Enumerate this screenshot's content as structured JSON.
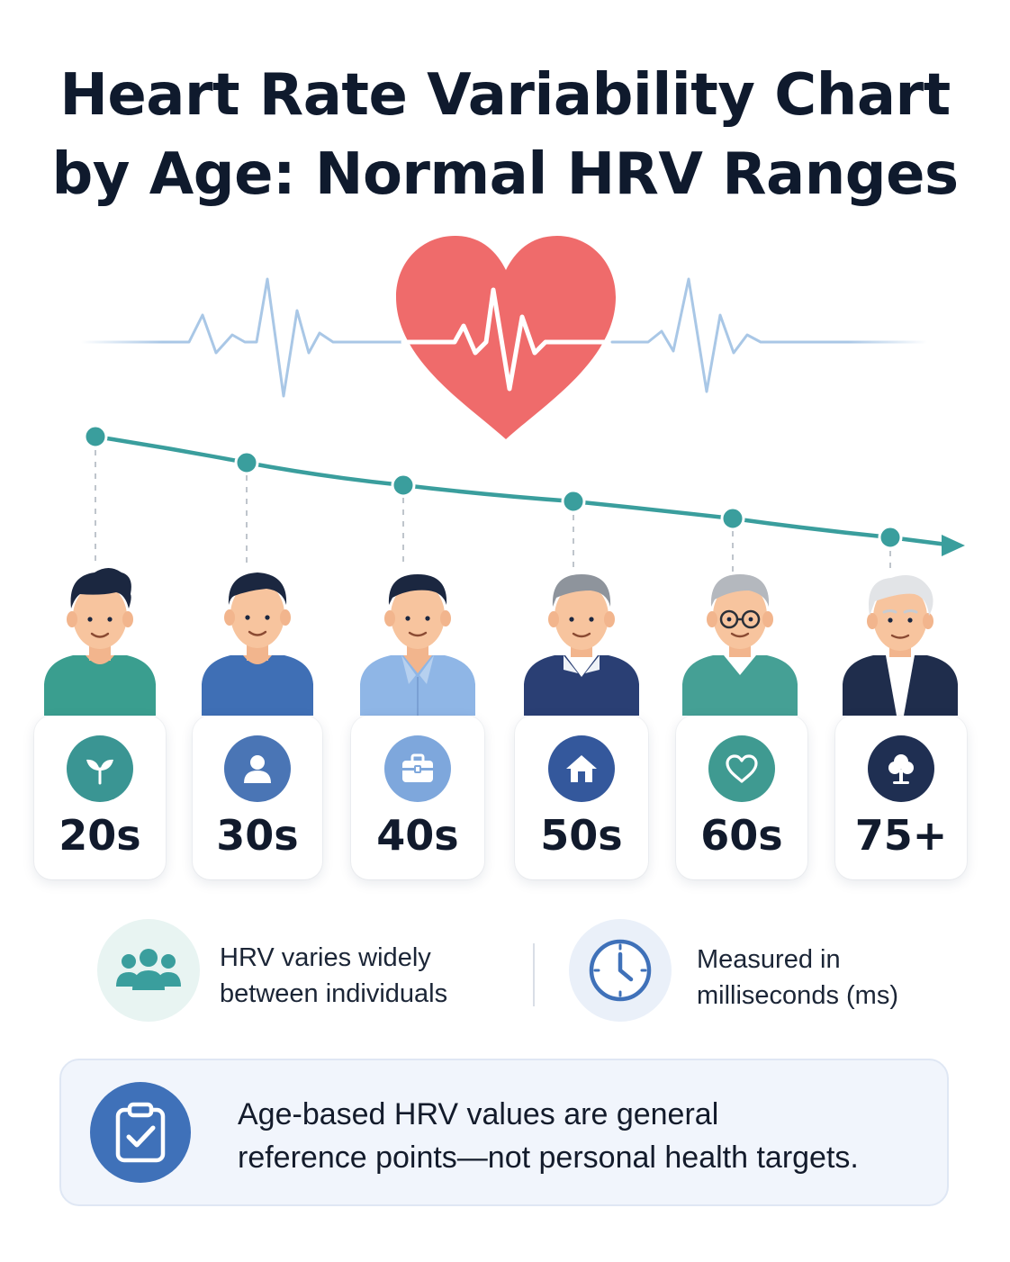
{
  "title": {
    "line1": "Heart Rate Variability Chart",
    "line2": "by Age: Normal HRV Ranges"
  },
  "trend": {
    "direction": "decreasing",
    "line_color": "#3a9e9d"
  },
  "age_groups": [
    {
      "label": "20s",
      "icon": "sprout-icon",
      "badge_color": "#3a9593",
      "shirt_color": "#3a9e8f"
    },
    {
      "label": "30s",
      "icon": "person-icon",
      "badge_color": "#4a75b5",
      "shirt_color": "#3f6fb5"
    },
    {
      "label": "40s",
      "icon": "briefcase-icon",
      "badge_color": "#7ea7dc",
      "shirt_color": "#8fb6e6"
    },
    {
      "label": "50s",
      "icon": "home-icon",
      "badge_color": "#34589c",
      "shirt_color": "#2a3f74"
    },
    {
      "label": "60s",
      "icon": "heart-icon",
      "badge_color": "#3f9a91",
      "shirt_color": "#45a095"
    },
    {
      "label": "75+",
      "icon": "tree-icon",
      "badge_color": "#1f2f52",
      "shirt_color": "#1f2d4c"
    }
  ],
  "info": [
    {
      "icon": "group-icon",
      "text_line1": "HRV varies widely",
      "text_line2": "between individuals"
    },
    {
      "icon": "clock-icon",
      "text_line1": "Measured in",
      "text_line2": "milliseconds (ms)"
    }
  ],
  "note": {
    "icon": "clipboard-check-icon",
    "line1": "Age-based HRV values are general",
    "line2": "reference points—not personal health targets."
  },
  "colors": {
    "heart": "#ef6b6b",
    "ecg": "#a9c7e6",
    "accent": "#3a9e9d",
    "title": "#0f1a2d"
  }
}
